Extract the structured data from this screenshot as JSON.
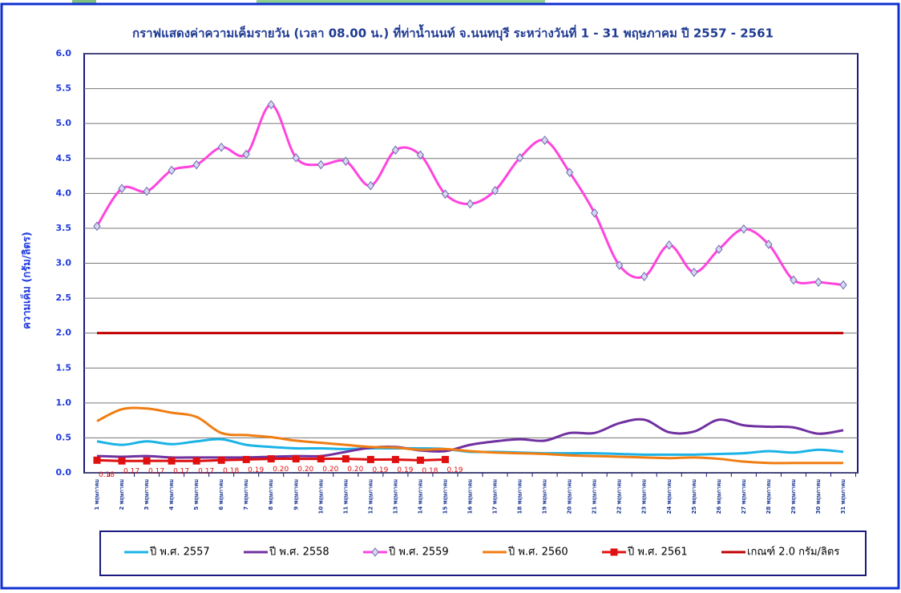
{
  "chart_data": {
    "type": "line",
    "title": "กราฟแสดงค่าความเค็มรายวัน (เวลา 08.00 น.) ที่ท่าน้ำนนท์ จ.นนทบุรี ระหว่างวันที่ 1 - 31 พฤษภาคม ปี 2557 - 2561",
    "y_label": "ความเค็ม (กรัม/ลิตร)",
    "categories": [
      "1 พฤษภาคม",
      "2 พฤษภาคม",
      "3 พฤษภาคม",
      "4 พฤษภาคม",
      "5 พฤษภาคม",
      "6 พฤษภาคม",
      "7 พฤษภาคม",
      "8 พฤษภาคม",
      "9 พฤษภาคม",
      "10 พฤษภาคม",
      "11 พฤษภาคม",
      "12 พฤษภาคม",
      "13 พฤษภาคม",
      "14 พฤษภาคม",
      "15 พฤษภาคม",
      "16 พฤษภาคม",
      "17 พฤษภาคม",
      "18 พฤษภาคม",
      "19 พฤษภาคม",
      "20 พฤษภาคม",
      "21 พฤษภาคม",
      "22 พฤษภาคม",
      "23 พฤษภาคม",
      "24 พฤษภาคม",
      "25 พฤษภาคม",
      "26 พฤษภาคม",
      "27 พฤษภาคม",
      "28 พฤษภาคม",
      "29 พฤษภาคม",
      "30 พฤษภาคม",
      "31 พฤษภาคม"
    ],
    "ylim": [
      0,
      6
    ],
    "yticks": [
      {
        "value": 0,
        "label": "0.0"
      },
      {
        "value": 0.5,
        "label": "0.5"
      },
      {
        "value": 1,
        "label": "1.0"
      },
      {
        "value": 1.5,
        "label": "1.5"
      },
      {
        "value": 2,
        "label": "2.0"
      },
      {
        "value": 2.5,
        "label": "2.5"
      },
      {
        "value": 3,
        "label": "3.0"
      },
      {
        "value": 3.5,
        "label": "3.5"
      },
      {
        "value": 4,
        "label": "4.0"
      },
      {
        "value": 4.5,
        "label": "4.5"
      },
      {
        "value": 5,
        "label": "5.0"
      },
      {
        "value": 5.5,
        "label": "5.5"
      },
      {
        "value": 6,
        "label": "6.0"
      }
    ],
    "grid": true,
    "series": [
      {
        "name": "ปี พ.ศ. 2557",
        "color": "#1ab3e6",
        "marker": "none",
        "values": [
          0.45,
          0.4,
          0.45,
          0.41,
          0.45,
          0.48,
          0.4,
          0.37,
          0.35,
          0.35,
          0.34,
          0.35,
          0.35,
          0.35,
          0.34,
          0.3,
          0.3,
          0.29,
          0.28,
          0.28,
          0.28,
          0.27,
          0.26,
          0.26,
          0.26,
          0.27,
          0.28,
          0.31,
          0.29,
          0.33,
          0.3
        ]
      },
      {
        "name": "ปี พ.ศ. 2558",
        "color": "#7030a0",
        "marker": "none",
        "values": [
          0.24,
          0.23,
          0.24,
          0.22,
          0.22,
          0.22,
          0.22,
          0.23,
          0.24,
          0.24,
          0.3,
          0.36,
          0.37,
          0.32,
          0.31,
          0.4,
          0.45,
          0.48,
          0.46,
          0.57,
          0.57,
          0.71,
          0.76,
          0.58,
          0.59,
          0.76,
          0.68,
          0.66,
          0.65,
          0.56,
          0.61
        ]
      },
      {
        "name": "ปี พ.ศ. 2559",
        "color": "#ff44dd",
        "marker": "diamond",
        "values": [
          3.53,
          4.07,
          4.03,
          4.33,
          4.41,
          4.66,
          4.56,
          5.27,
          4.51,
          4.41,
          4.46,
          4.11,
          4.62,
          4.55,
          3.99,
          3.85,
          4.04,
          4.51,
          4.76,
          4.3,
          3.72,
          2.97,
          2.81,
          3.26,
          2.87,
          3.2,
          3.49,
          3.27,
          2.76,
          2.73,
          2.69
        ]
      },
      {
        "name": "ปี พ.ศ. 2560",
        "color": "#f07d12",
        "marker": "none",
        "values": [
          0.74,
          0.91,
          0.92,
          0.86,
          0.8,
          0.57,
          0.54,
          0.51,
          0.46,
          0.43,
          0.4,
          0.37,
          0.36,
          0.33,
          0.34,
          0.31,
          0.29,
          0.28,
          0.27,
          0.25,
          0.24,
          0.23,
          0.22,
          0.21,
          0.22,
          0.2,
          0.16,
          0.14,
          0.14,
          0.14,
          0.14
        ]
      },
      {
        "name": "ปี พ.ศ. 2561",
        "color": "#e01010",
        "marker": "square",
        "values": [
          0.18,
          0.17,
          0.17,
          0.17,
          0.17,
          0.18,
          0.19,
          0.2,
          0.2,
          0.2,
          0.2,
          0.19,
          0.19,
          0.18,
          0.19,
          null,
          null,
          null,
          null,
          null,
          null,
          null,
          null,
          null,
          null,
          null,
          null,
          null,
          null,
          null,
          null
        ],
        "value_labels": [
          "0.18",
          "0.17",
          "0.17",
          "0.17",
          "0.17",
          "0.18",
          "0.19",
          "0.20",
          "0.20",
          "0.20",
          "0.20",
          "0.19",
          "0.19",
          "0.18",
          "0.19",
          null,
          null,
          null,
          null,
          null,
          null,
          null,
          null,
          null,
          null,
          null,
          null,
          null,
          null,
          null,
          null
        ]
      },
      {
        "name": "เกณฑ์ 2.0 กรัม/ลิตร",
        "color": "#c00000",
        "marker": "none",
        "values": [
          2,
          2,
          2,
          2,
          2,
          2,
          2,
          2,
          2,
          2,
          2,
          2,
          2,
          2,
          2,
          2,
          2,
          2,
          2,
          2,
          2,
          2,
          2,
          2,
          2,
          2,
          2,
          2,
          2,
          2,
          2
        ]
      }
    ]
  }
}
